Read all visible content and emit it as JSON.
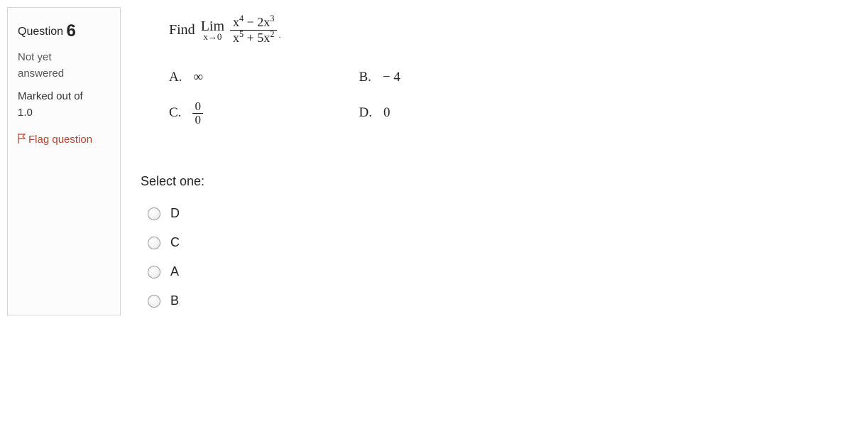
{
  "info": {
    "question_word": "Question",
    "question_number": "6",
    "state_line1": "Not yet",
    "state_line2": "answered",
    "grade_line1": "Marked out of",
    "grade_line2": "1.0",
    "flag_label": "Flag question"
  },
  "question": {
    "find_text": "Find",
    "lim_text": "Lim",
    "lim_sub": "x→0",
    "numerator_html": "x<sup>4</sup> − 2x<sup>3</sup>",
    "denominator_html": "x<sup>5</sup> + 5x<sup>2</sup>",
    "tail_dot": "."
  },
  "choices": {
    "A": {
      "letter": "A.",
      "value": "∞"
    },
    "B": {
      "letter": "B.",
      "value": "− 4"
    },
    "C": {
      "letter": "C.",
      "frac_num": "0",
      "frac_den": "0"
    },
    "D": {
      "letter": "D.",
      "value": "0"
    }
  },
  "select": {
    "label": "Select one:",
    "options": [
      "D",
      "C",
      "A",
      "B"
    ]
  },
  "colors": {
    "flag_link": "#b5432f",
    "card_border": "#d4d4d4",
    "background": "#ffffff"
  }
}
